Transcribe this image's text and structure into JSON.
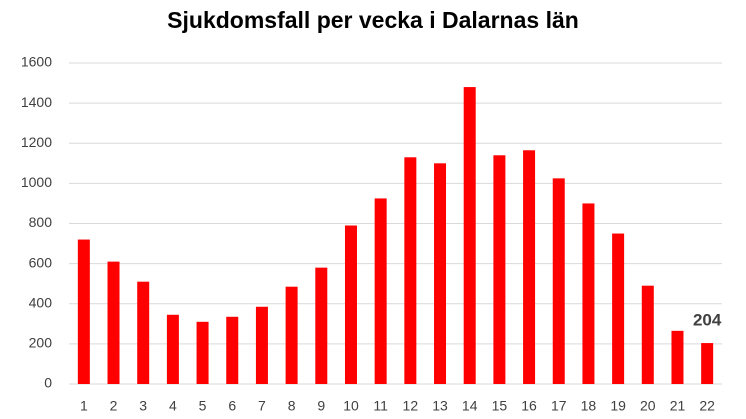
{
  "chart_data": {
    "type": "bar",
    "title": "Sjukdomsfall per vecka i Dalarnas län",
    "categories": [
      "1",
      "2",
      "3",
      "4",
      "5",
      "6",
      "7",
      "8",
      "9",
      "10",
      "11",
      "12",
      "13",
      "14",
      "15",
      "16",
      "17",
      "18",
      "19",
      "20",
      "21",
      "22"
    ],
    "values": [
      720,
      610,
      510,
      345,
      310,
      335,
      385,
      485,
      580,
      790,
      925,
      1130,
      1100,
      1480,
      1140,
      1165,
      1025,
      900,
      750,
      490,
      265,
      204
    ],
    "value_labels": [
      null,
      null,
      null,
      null,
      null,
      null,
      null,
      null,
      null,
      null,
      null,
      null,
      null,
      null,
      null,
      null,
      null,
      null,
      null,
      null,
      null,
      "204"
    ],
    "color": "#ff0000",
    "ylim": [
      0,
      1600
    ],
    "yticks": [
      0,
      200,
      400,
      600,
      800,
      1000,
      1200,
      1400,
      1600
    ],
    "grid": true
  }
}
